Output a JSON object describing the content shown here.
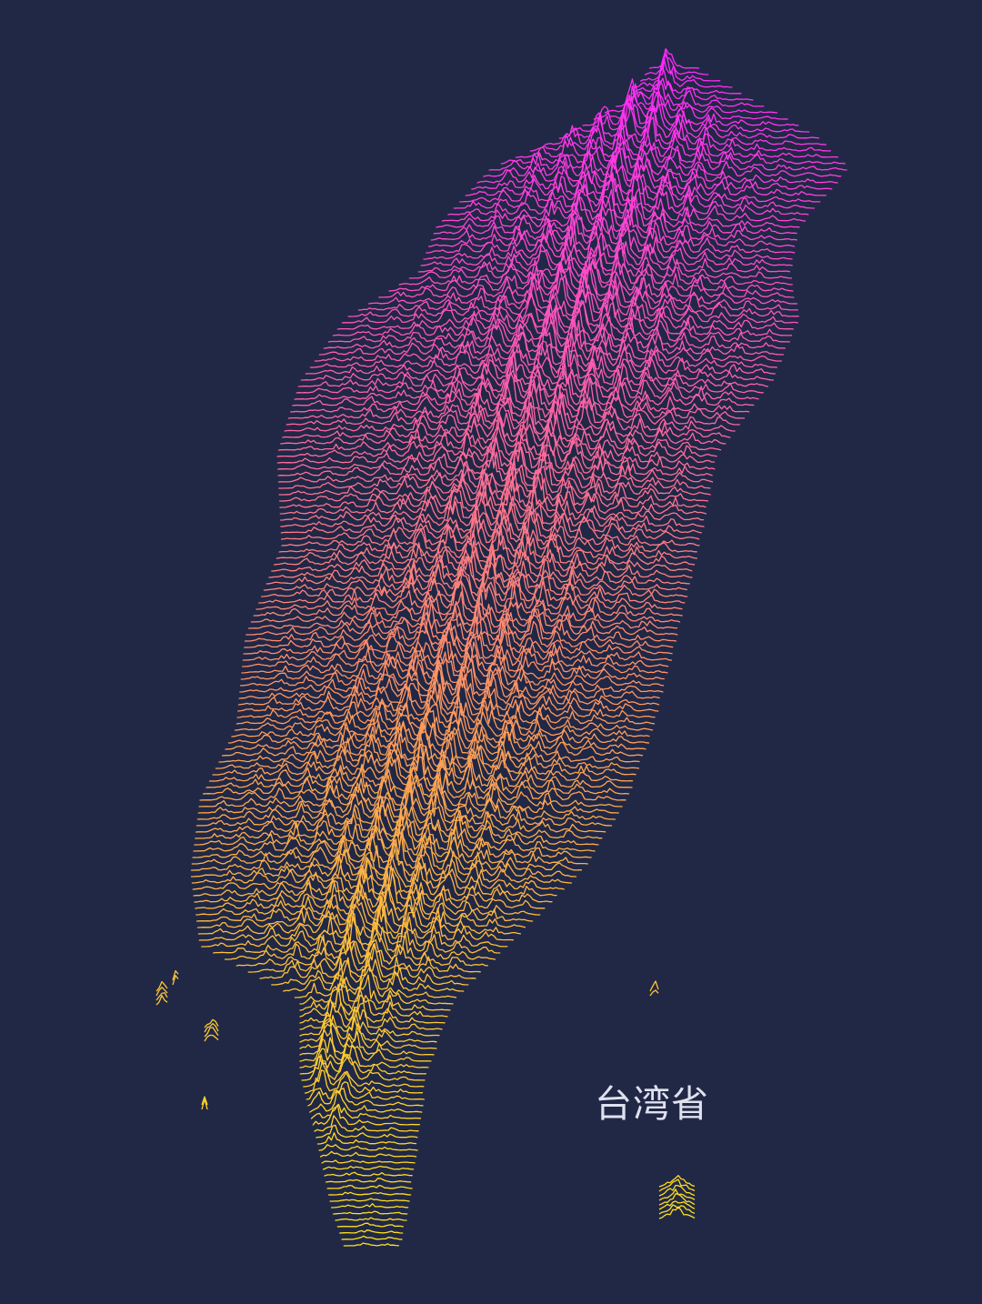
{
  "map": {
    "label": "台湾省",
    "style": "ridgeline-elevation",
    "colors": {
      "background": "#212846",
      "label_text": "#dfe1ee",
      "gradient_north": "#ff27ff",
      "gradient_middle": "#ff7a7a",
      "gradient_central": "#ffa352",
      "gradient_south": "#ffe51a"
    }
  }
}
